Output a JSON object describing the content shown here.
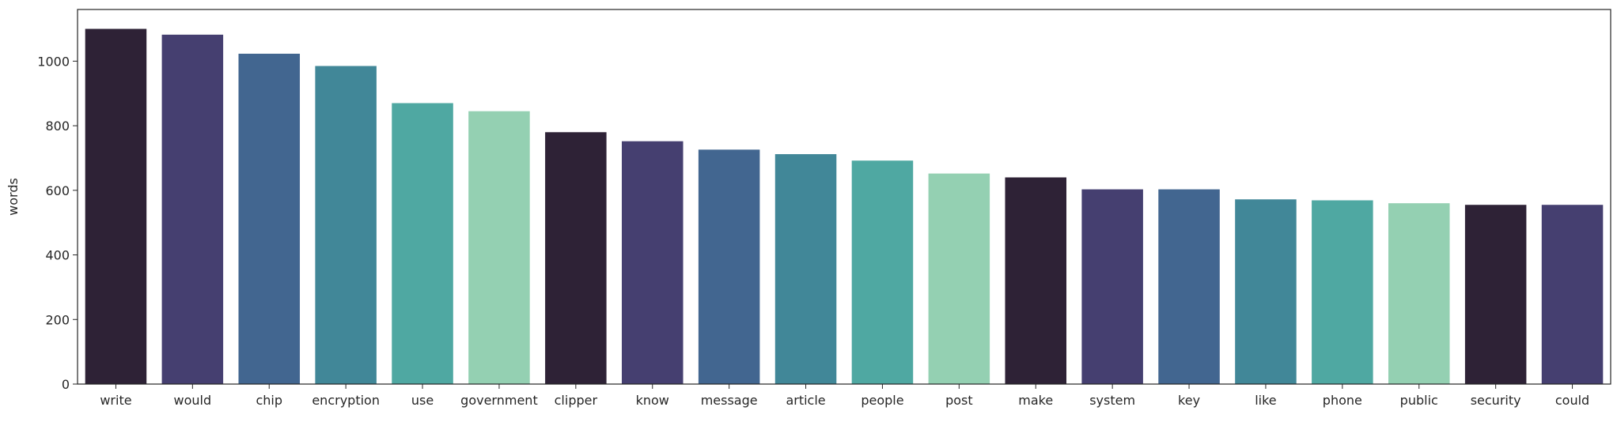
{
  "chart_data": {
    "type": "bar",
    "categories": [
      "write",
      "would",
      "chip",
      "encryption",
      "use",
      "government",
      "clipper",
      "know",
      "message",
      "article",
      "people",
      "post",
      "make",
      "system",
      "key",
      "like",
      "phone",
      "public",
      "security",
      "could"
    ],
    "values": [
      1100,
      1082,
      1023,
      985,
      870,
      845,
      780,
      752,
      726,
      712,
      692,
      652,
      640,
      603,
      603,
      572,
      569,
      560,
      555,
      555
    ],
    "title": "",
    "xlabel": "",
    "ylabel": "words",
    "ylim": [
      0,
      1160
    ],
    "yticks": [
      0,
      200,
      400,
      600,
      800,
      1000
    ],
    "grid": false,
    "legend": "none",
    "palette": [
      "#2e2236",
      "#453f70",
      "#426690",
      "#418798",
      "#4fa8a2",
      "#94d0b2"
    ]
  }
}
